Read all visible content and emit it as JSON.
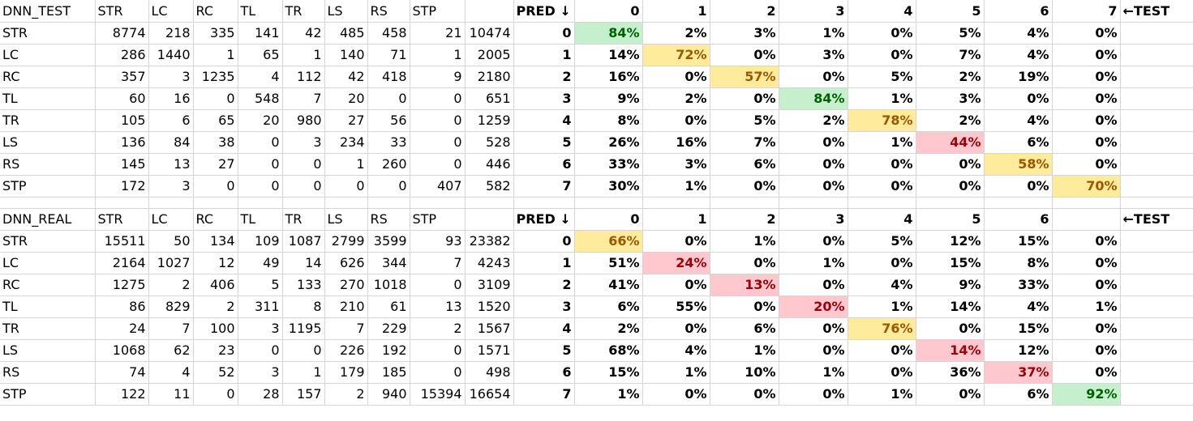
{
  "colors": {
    "green_fill": "#c6efce",
    "green_text": "#006100",
    "yellow_fill": "#ffeb9c",
    "yellow_text": "#9c5700",
    "red_fill": "#ffc7ce",
    "red_text": "#9c0006",
    "gridline": "#d4d4d4"
  },
  "tables": [
    {
      "name": "DNN_TEST",
      "columns": [
        "STR",
        "LC",
        "RC",
        "TL",
        "TR",
        "LS",
        "RS",
        "STP",
        ""
      ],
      "rows": [
        {
          "label": "STR",
          "values": [
            "8774",
            "218",
            "335",
            "141",
            "42",
            "485",
            "458",
            "21",
            "10474"
          ]
        },
        {
          "label": "LC",
          "values": [
            "286",
            "1440",
            "1",
            "65",
            "1",
            "140",
            "71",
            "1",
            "2005"
          ]
        },
        {
          "label": "RC",
          "values": [
            "357",
            "3",
            "1235",
            "4",
            "112",
            "42",
            "418",
            "9",
            "2180"
          ]
        },
        {
          "label": "TL",
          "values": [
            "60",
            "16",
            "0",
            "548",
            "7",
            "20",
            "0",
            "0",
            "651"
          ]
        },
        {
          "label": "TR",
          "values": [
            "105",
            "6",
            "65",
            "20",
            "980",
            "27",
            "56",
            "0",
            "1259"
          ]
        },
        {
          "label": "LS",
          "values": [
            "136",
            "84",
            "38",
            "0",
            "3",
            "234",
            "33",
            "0",
            "528"
          ]
        },
        {
          "label": "RS",
          "values": [
            "145",
            "13",
            "27",
            "0",
            "0",
            "1",
            "260",
            "0",
            "446"
          ]
        },
        {
          "label": "STP",
          "values": [
            "172",
            "3",
            "0",
            "0",
            "0",
            "0",
            "0",
            "407",
            "582"
          ]
        }
      ],
      "pred_header": "PRED ↓",
      "test_header": "←TEST",
      "pct_columns": [
        "0",
        "1",
        "2",
        "3",
        "4",
        "5",
        "6",
        "7"
      ],
      "pct_rows": [
        {
          "index": "0",
          "values": [
            "84%",
            "2%",
            "3%",
            "1%",
            "0%",
            "5%",
            "4%",
            "0%"
          ],
          "highlight": {
            "col": 0,
            "color": "green"
          }
        },
        {
          "index": "1",
          "values": [
            "14%",
            "72%",
            "0%",
            "3%",
            "0%",
            "7%",
            "4%",
            "0%"
          ],
          "highlight": {
            "col": 1,
            "color": "yellow"
          }
        },
        {
          "index": "2",
          "values": [
            "16%",
            "0%",
            "57%",
            "0%",
            "5%",
            "2%",
            "19%",
            "0%"
          ],
          "highlight": {
            "col": 2,
            "color": "yellow"
          }
        },
        {
          "index": "3",
          "values": [
            "9%",
            "2%",
            "0%",
            "84%",
            "1%",
            "3%",
            "0%",
            "0%"
          ],
          "highlight": {
            "col": 3,
            "color": "green"
          }
        },
        {
          "index": "4",
          "values": [
            "8%",
            "0%",
            "5%",
            "2%",
            "78%",
            "2%",
            "4%",
            "0%"
          ],
          "highlight": {
            "col": 4,
            "color": "yellow"
          }
        },
        {
          "index": "5",
          "values": [
            "26%",
            "16%",
            "7%",
            "0%",
            "1%",
            "44%",
            "6%",
            "0%"
          ],
          "highlight": {
            "col": 5,
            "color": "red"
          }
        },
        {
          "index": "6",
          "values": [
            "33%",
            "3%",
            "6%",
            "0%",
            "0%",
            "0%",
            "58%",
            "0%"
          ],
          "highlight": {
            "col": 6,
            "color": "yellow"
          }
        },
        {
          "index": "7",
          "values": [
            "30%",
            "1%",
            "0%",
            "0%",
            "0%",
            "0%",
            "0%",
            "70%"
          ],
          "highlight": {
            "col": 7,
            "color": "yellow"
          }
        }
      ]
    },
    {
      "name": "DNN_REAL",
      "columns": [
        "STR",
        "LC",
        "RC",
        "TL",
        "TR",
        "LS",
        "RS",
        "STP",
        ""
      ],
      "rows": [
        {
          "label": "STR",
          "values": [
            "15511",
            "50",
            "134",
            "109",
            "1087",
            "2799",
            "3599",
            "93",
            "23382"
          ]
        },
        {
          "label": "LC",
          "values": [
            "2164",
            "1027",
            "12",
            "49",
            "14",
            "626",
            "344",
            "7",
            "4243"
          ]
        },
        {
          "label": "RC",
          "values": [
            "1275",
            "2",
            "406",
            "5",
            "133",
            "270",
            "1018",
            "0",
            "3109"
          ]
        },
        {
          "label": "TL",
          "values": [
            "86",
            "829",
            "2",
            "311",
            "8",
            "210",
            "61",
            "13",
            "1520"
          ]
        },
        {
          "label": "TR",
          "values": [
            "24",
            "7",
            "100",
            "3",
            "1195",
            "7",
            "229",
            "2",
            "1567"
          ]
        },
        {
          "label": "LS",
          "values": [
            "1068",
            "62",
            "23",
            "0",
            "0",
            "226",
            "192",
            "0",
            "1571"
          ]
        },
        {
          "label": "RS",
          "values": [
            "74",
            "4",
            "52",
            "3",
            "1",
            "179",
            "185",
            "0",
            "498"
          ]
        },
        {
          "label": "STP",
          "values": [
            "122",
            "11",
            "0",
            "28",
            "157",
            "2",
            "940",
            "15394",
            "16654"
          ]
        }
      ],
      "pred_header": "PRED ↓",
      "test_header": "←TEST",
      "pct_columns": [
        "0",
        "1",
        "2",
        "3",
        "4",
        "5",
        "6",
        ""
      ],
      "pct_rows": [
        {
          "index": "0",
          "values": [
            "66%",
            "0%",
            "1%",
            "0%",
            "5%",
            "12%",
            "15%",
            "0%"
          ],
          "highlight": {
            "col": 0,
            "color": "yellow"
          }
        },
        {
          "index": "1",
          "values": [
            "51%",
            "24%",
            "0%",
            "1%",
            "0%",
            "15%",
            "8%",
            "0%"
          ],
          "highlight": {
            "col": 1,
            "color": "red"
          }
        },
        {
          "index": "2",
          "values": [
            "41%",
            "0%",
            "13%",
            "0%",
            "4%",
            "9%",
            "33%",
            "0%"
          ],
          "highlight": {
            "col": 2,
            "color": "red"
          }
        },
        {
          "index": "3",
          "values": [
            "6%",
            "55%",
            "0%",
            "20%",
            "1%",
            "14%",
            "4%",
            "1%"
          ],
          "highlight": {
            "col": 3,
            "color": "red"
          }
        },
        {
          "index": "4",
          "values": [
            "2%",
            "0%",
            "6%",
            "0%",
            "76%",
            "0%",
            "15%",
            "0%"
          ],
          "highlight": {
            "col": 4,
            "color": "yellow"
          }
        },
        {
          "index": "5",
          "values": [
            "68%",
            "4%",
            "1%",
            "0%",
            "0%",
            "14%",
            "12%",
            "0%"
          ],
          "highlight": {
            "col": 5,
            "color": "red"
          }
        },
        {
          "index": "6",
          "values": [
            "15%",
            "1%",
            "10%",
            "1%",
            "0%",
            "36%",
            "37%",
            "0%"
          ],
          "highlight": {
            "col": 6,
            "color": "red"
          }
        },
        {
          "index": "7",
          "values": [
            "1%",
            "0%",
            "0%",
            "0%",
            "1%",
            "0%",
            "6%",
            "92%"
          ],
          "highlight": {
            "col": 7,
            "color": "green"
          }
        }
      ]
    }
  ]
}
